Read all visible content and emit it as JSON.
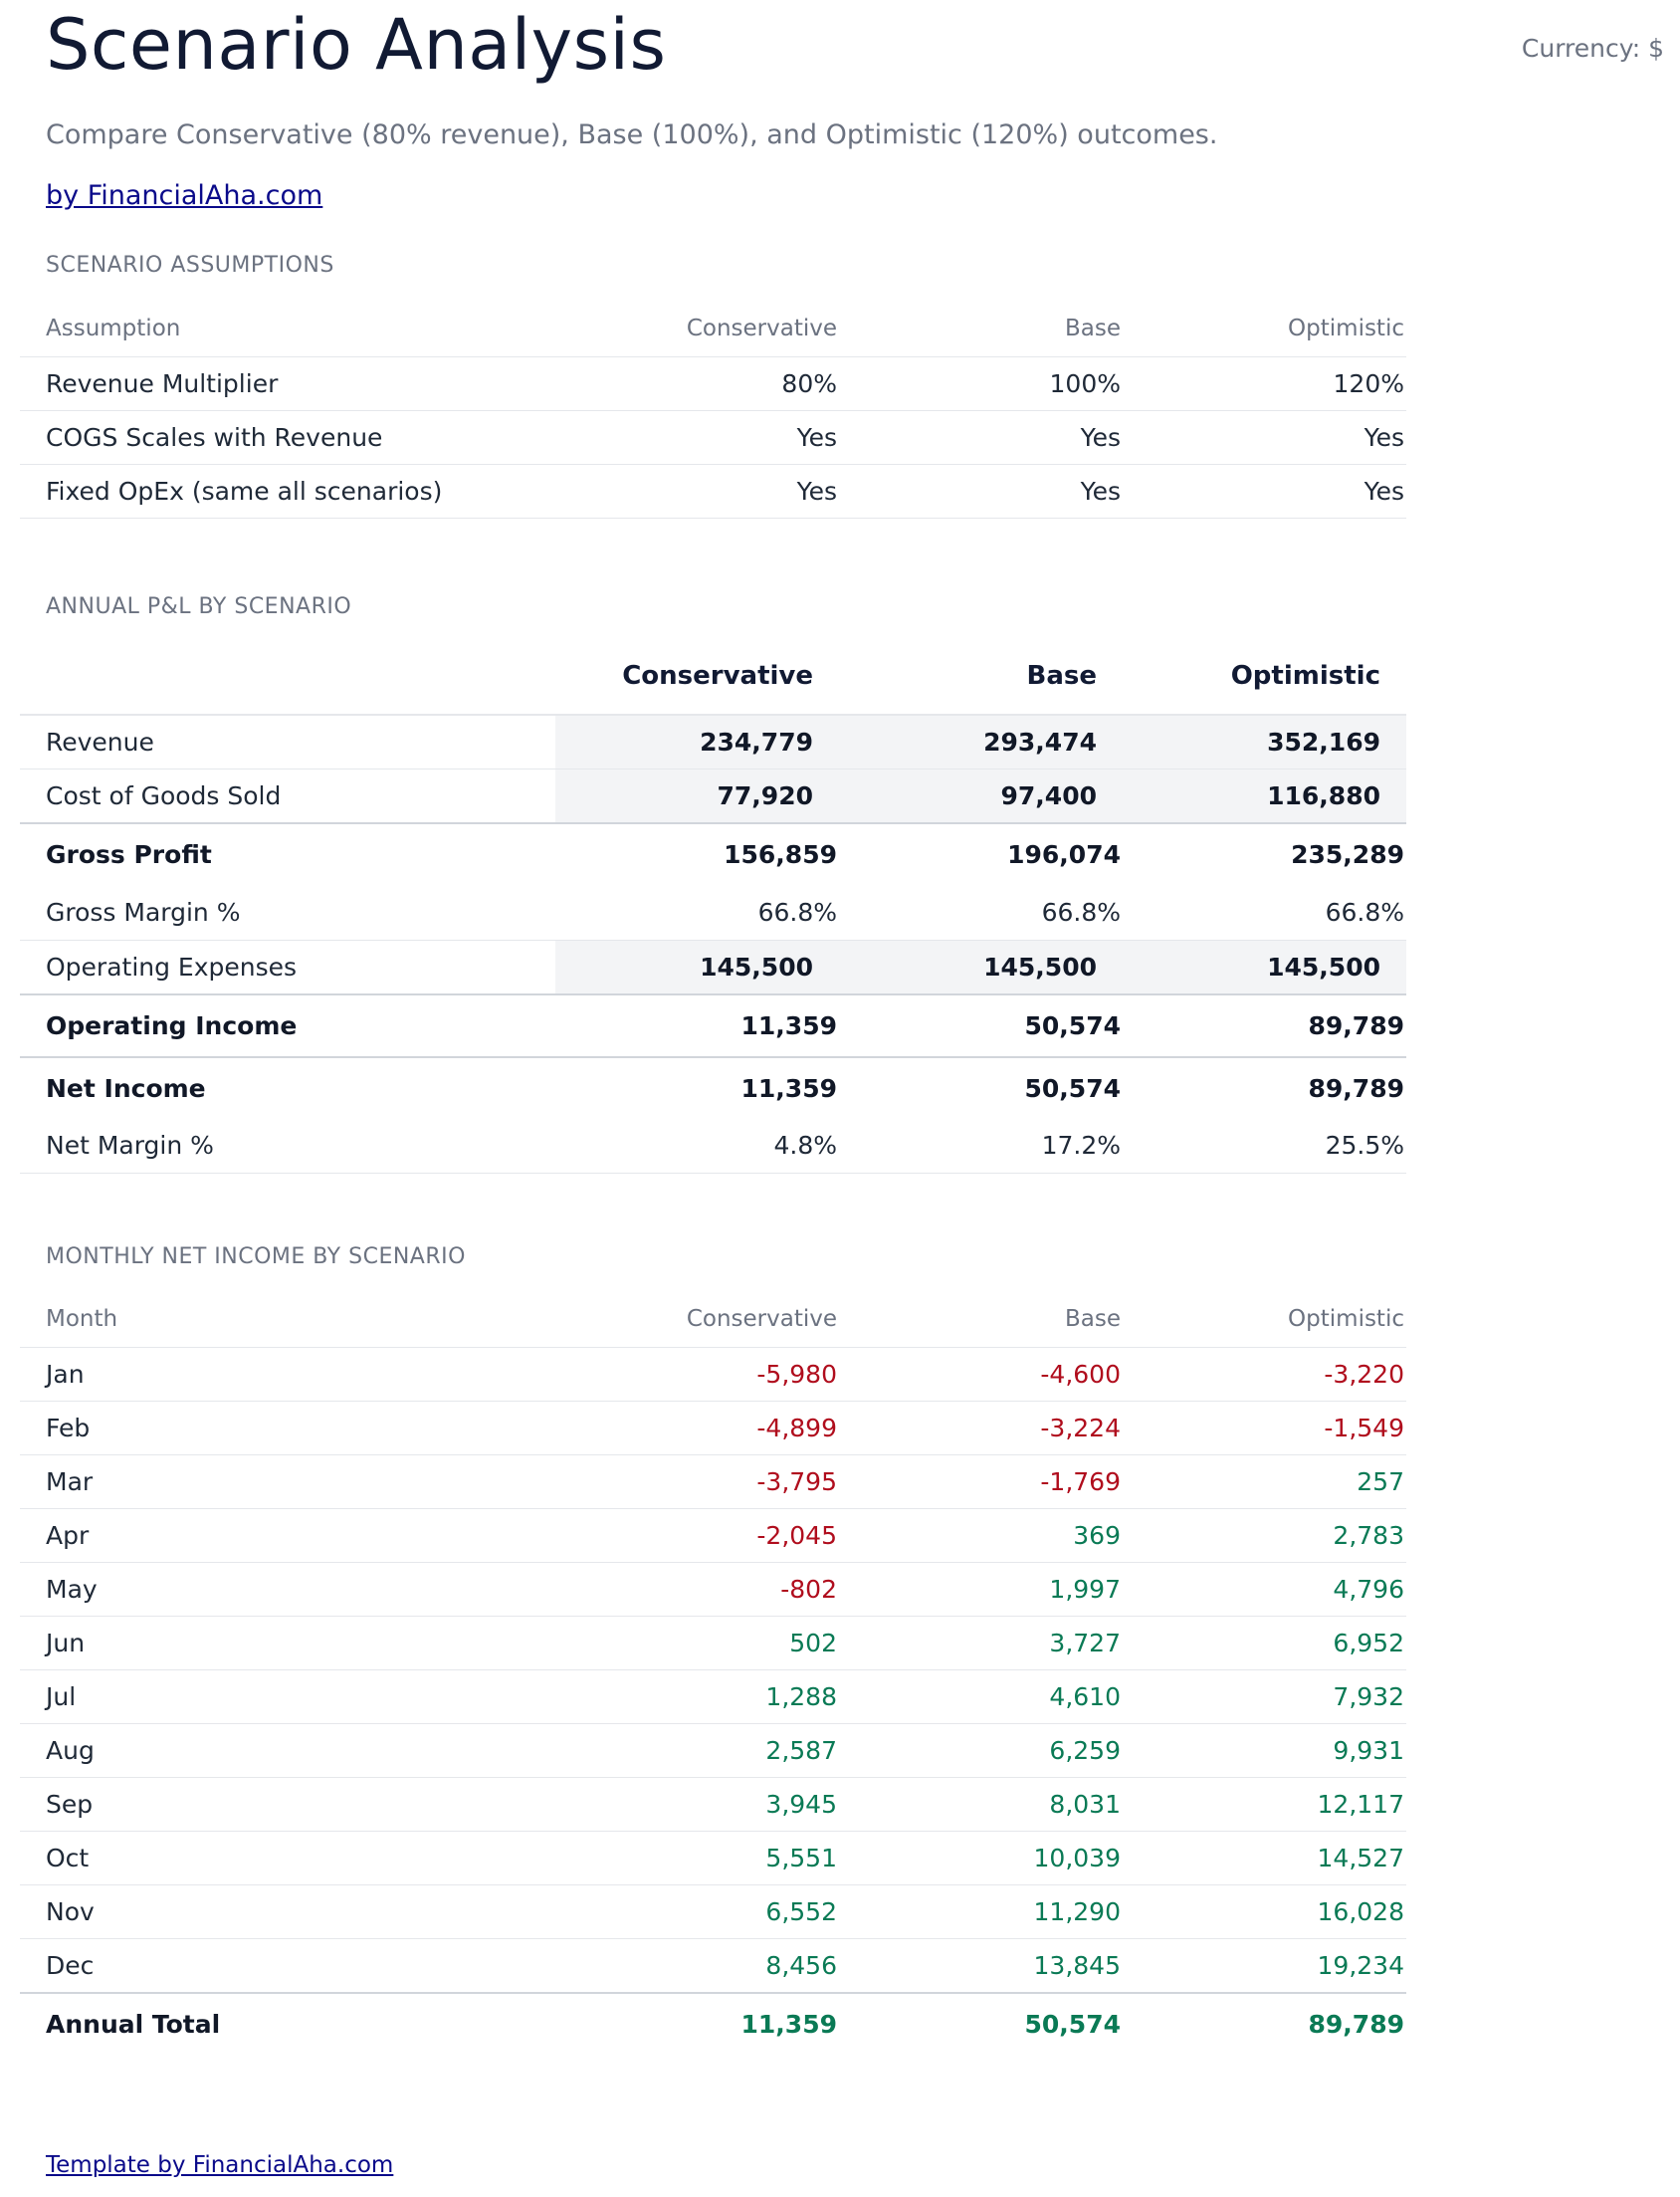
{
  "header": {
    "title": "Scenario Analysis",
    "currency": "Currency: $",
    "subtitle": "Compare Conservative (80% revenue), Base (100%), and Optimistic (120%) outcomes.",
    "brand_link": "by FinancialAha.com"
  },
  "assumptions": {
    "section_title": "SCENARIO ASSUMPTIONS",
    "columns": [
      "Assumption",
      "Conservative",
      "Base",
      "Optimistic"
    ],
    "rows": [
      [
        "Revenue Multiplier",
        "80%",
        "100%",
        "120%"
      ],
      [
        "COGS Scales with Revenue",
        "Yes",
        "Yes",
        "Yes"
      ],
      [
        "Fixed OpEx (same all scenarios)",
        "Yes",
        "Yes",
        "Yes"
      ]
    ]
  },
  "pl": {
    "section_title": "ANNUAL P&L BY SCENARIO",
    "columns": [
      "",
      "Conservative",
      "Base",
      "Optimistic"
    ],
    "rows": {
      "revenue": [
        "Revenue",
        "234,779",
        "293,474",
        "352,169"
      ],
      "cogs": [
        "Cost of Goods Sold",
        "77,920",
        "97,400",
        "116,880"
      ],
      "gross_profit": [
        "Gross Profit",
        "156,859",
        "196,074",
        "235,289"
      ],
      "gross_margin": [
        "Gross Margin %",
        "66.8%",
        "66.8%",
        "66.8%"
      ],
      "opex": [
        "Operating Expenses",
        "145,500",
        "145,500",
        "145,500"
      ],
      "operating_income": [
        "Operating Income",
        "11,359",
        "50,574",
        "89,789"
      ],
      "net_income": [
        "Net Income",
        "11,359",
        "50,574",
        "89,789"
      ],
      "net_margin": [
        "Net Margin %",
        "4.8%",
        "17.2%",
        "25.5%"
      ]
    }
  },
  "monthly": {
    "section_title": "MONTHLY NET INCOME BY SCENARIO",
    "columns": [
      "Month",
      "Conservative",
      "Base",
      "Optimistic"
    ],
    "rows": [
      [
        "Jan",
        "-5,980",
        "-4,600",
        "-3,220"
      ],
      [
        "Feb",
        "-4,899",
        "-3,224",
        "-1,549"
      ],
      [
        "Mar",
        "-3,795",
        "-1,769",
        "257"
      ],
      [
        "Apr",
        "-2,045",
        "369",
        "2,783"
      ],
      [
        "May",
        "-802",
        "1,997",
        "4,796"
      ],
      [
        "Jun",
        "502",
        "3,727",
        "6,952"
      ],
      [
        "Jul",
        "1,288",
        "4,610",
        "7,932"
      ],
      [
        "Aug",
        "2,587",
        "6,259",
        "9,931"
      ],
      [
        "Sep",
        "3,945",
        "8,031",
        "12,117"
      ],
      [
        "Oct",
        "5,551",
        "10,039",
        "14,527"
      ],
      [
        "Nov",
        "6,552",
        "11,290",
        "16,028"
      ],
      [
        "Dec",
        "8,456",
        "13,845",
        "19,234"
      ]
    ],
    "total": [
      "Annual Total",
      "11,359",
      "50,574",
      "89,789"
    ]
  },
  "footer": {
    "link": "Template by FinancialAha.com"
  },
  "colors": {
    "negative": "#b00d1d",
    "positive": "#0a7a55",
    "input_cell_bg": "#f3f4f6",
    "link": "#0a0a8a"
  }
}
